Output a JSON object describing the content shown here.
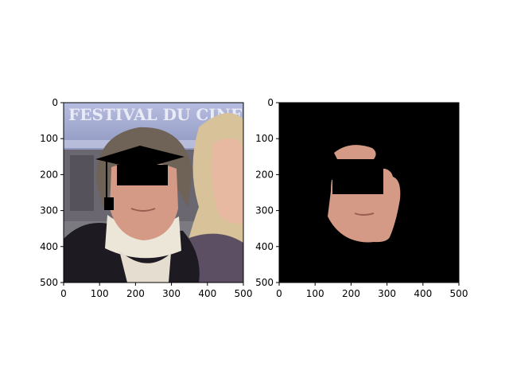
{
  "chart_data": [
    {
      "type": "image",
      "panel": "left",
      "xlim": [
        0,
        500
      ],
      "ylim": [
        500,
        0
      ],
      "xticks": [
        0,
        100,
        200,
        300,
        400,
        500
      ],
      "yticks": [
        0,
        100,
        200,
        300,
        400,
        500
      ],
      "grid": false,
      "image_text": "FESTIVAL DU CINEMA",
      "colors": {
        "sky": "#9ea7cf",
        "banner": "#b7bde0",
        "skin": "#d49a86",
        "hair": "#6f6256",
        "blonde": "#d8c29a",
        "coat": "#1d1a22",
        "sweater": "#ece6d9",
        "mask": "#000000"
      }
    },
    {
      "type": "image",
      "panel": "right",
      "xlim": [
        0,
        500
      ],
      "ylim": [
        500,
        0
      ],
      "xticks": [
        0,
        100,
        200,
        300,
        400,
        500
      ],
      "yticks": [
        0,
        100,
        200,
        300,
        400,
        500
      ],
      "grid": false,
      "colors": {
        "background": "#000000",
        "skin": "#d49a86",
        "mask": "#000000"
      }
    }
  ]
}
